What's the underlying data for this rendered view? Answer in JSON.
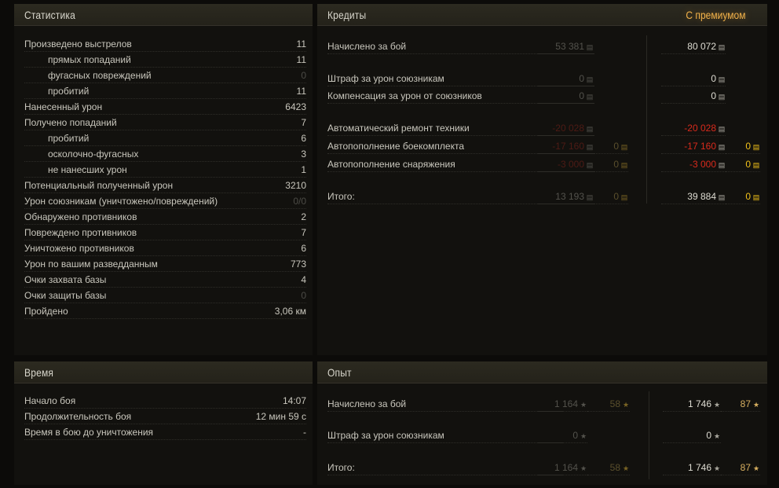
{
  "stats": {
    "title": "Статистика",
    "rows": [
      {
        "label": "Произведено выстрелов",
        "value": "11"
      },
      {
        "label": "прямых попаданий",
        "value": "11",
        "sub": true
      },
      {
        "label": "фугасных повреждений",
        "value": "0",
        "sub": true,
        "dim": true
      },
      {
        "label": "пробитий",
        "value": "11",
        "sub": true
      },
      {
        "label": "Нанесенный урон",
        "value": "6423"
      },
      {
        "label": "Получено попаданий",
        "value": "7"
      },
      {
        "label": "пробитий",
        "value": "6",
        "sub": true
      },
      {
        "label": "осколочно-фугасных",
        "value": "3",
        "sub": true
      },
      {
        "label": "не нанесших урон",
        "value": "1",
        "sub": true
      },
      {
        "label": "Потенциальный полученный урон",
        "value": "3210"
      },
      {
        "label": "Урон союзникам (уничтожено/повреждений)",
        "value": "0/0",
        "dim": true
      },
      {
        "label": "Обнаружено противников",
        "value": "2"
      },
      {
        "label": "Повреждено противников",
        "value": "7"
      },
      {
        "label": "Уничтожено противников",
        "value": "6"
      },
      {
        "label": "Урон по вашим разведданным",
        "value": "773"
      },
      {
        "label": "Очки захвата базы",
        "value": "4"
      },
      {
        "label": "Очки защиты базы",
        "value": "0",
        "dim": true
      },
      {
        "label": "Пройдено",
        "value": "3,06 км"
      }
    ]
  },
  "time": {
    "title": "Время",
    "rows": [
      {
        "label": "Начало боя",
        "value": "14:07"
      },
      {
        "label": "Продолжительность боя",
        "value": "12 мин 59 с"
      },
      {
        "label": "Время в бою до уничтожения",
        "value": "-"
      }
    ]
  },
  "credits": {
    "title": "Кредиты",
    "premium_label": "С премиумом",
    "icon": "credits-coin-icon",
    "gold_icon": "gold-coin-icon",
    "rows": [
      {
        "label": "Начислено за бой",
        "base": "53 381",
        "prem": "80 072"
      },
      {
        "label": "Штраф за урон союзникам",
        "base": "0",
        "prem": "0"
      },
      {
        "label": "Компенсация за урон от союзников",
        "base": "0",
        "prem": "0"
      },
      {
        "label": "Автоматический ремонт техники",
        "base": "-20 028",
        "prem": "-20 028",
        "negative": true
      },
      {
        "label": "Автопополнение боекомплекта",
        "base": "-17 160",
        "base_gold": "0",
        "prem": "-17 160",
        "prem_gold": "0",
        "negative": true
      },
      {
        "label": "Автопополнение снаряжения",
        "base": "-3 000",
        "base_gold": "0",
        "prem": "-3 000",
        "prem_gold": "0",
        "negative": true
      },
      {
        "label": "Итого:",
        "base": "13 193",
        "base_gold": "0",
        "prem": "39 884",
        "prem_gold": "0"
      }
    ]
  },
  "experience": {
    "title": "Опыт",
    "icon": "star-icon",
    "rows": [
      {
        "label": "Начислено за бой",
        "base": "1 164",
        "base_free": "58",
        "prem": "1 746",
        "prem_free": "87"
      },
      {
        "label": "Штраф за урон союзникам",
        "base": "0",
        "prem": "0"
      },
      {
        "label": "Итого:",
        "base": "1 164",
        "base_free": "58",
        "prem": "1 746",
        "prem_free": "87"
      }
    ]
  },
  "colors": {
    "accent_premium": "#f2b24a",
    "negative": "#d82a1c",
    "gold": "#f2c21a"
  }
}
